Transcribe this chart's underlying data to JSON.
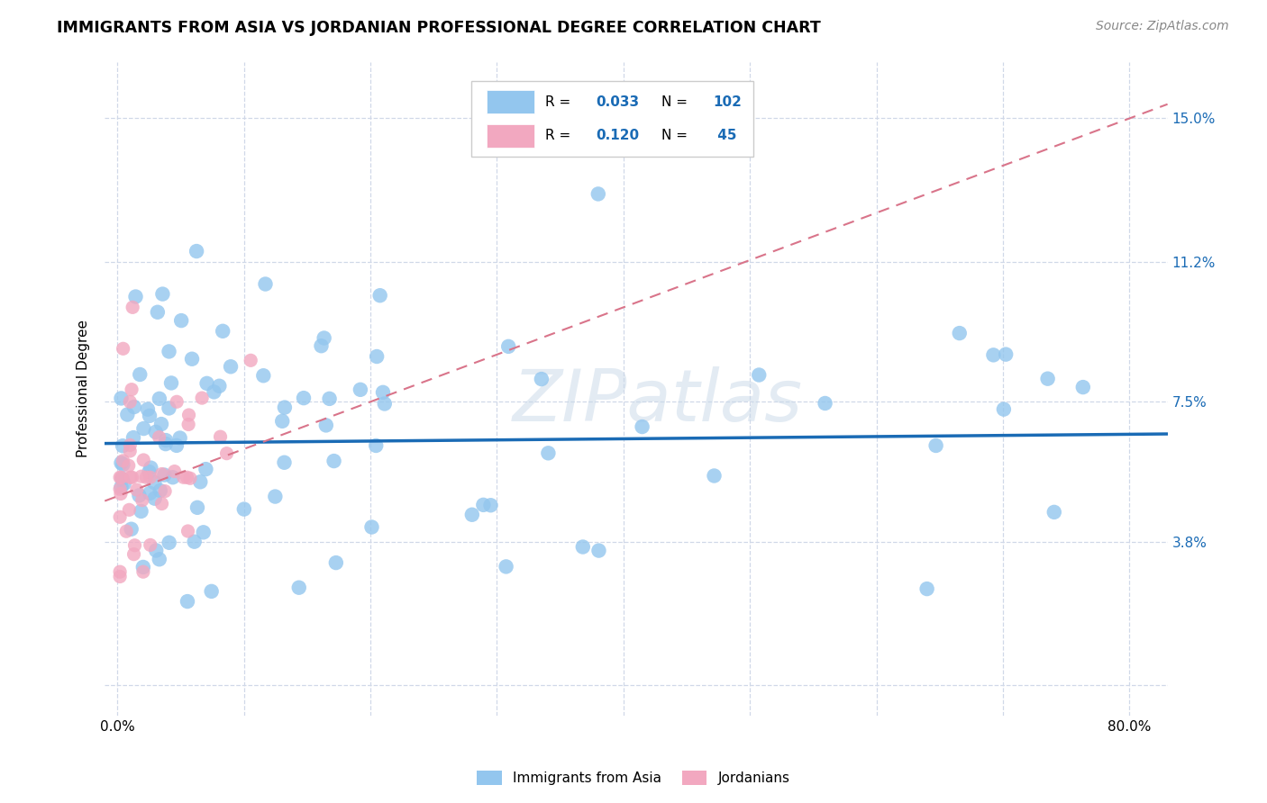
{
  "title": "IMMIGRANTS FROM ASIA VS JORDANIAN PROFESSIONAL DEGREE CORRELATION CHART",
  "source": "Source: ZipAtlas.com",
  "ylabel": "Professional Degree",
  "xlim": [
    -0.01,
    0.83
  ],
  "ylim": [
    -0.008,
    0.165
  ],
  "x_tick_positions": [
    0.0,
    0.1,
    0.2,
    0.3,
    0.4,
    0.5,
    0.6,
    0.7,
    0.8
  ],
  "x_tick_labels": [
    "0.0%",
    "",
    "",
    "",
    "",
    "",
    "",
    "",
    "80.0%"
  ],
  "y_tick_positions": [
    0.0,
    0.038,
    0.075,
    0.112,
    0.15
  ],
  "y_tick_labels": [
    "",
    "3.8%",
    "7.5%",
    "11.2%",
    "15.0%"
  ],
  "legend_labels": [
    "Immigrants from Asia",
    "Jordanians"
  ],
  "legend_R_asia": "0.033",
  "legend_N_asia": "102",
  "legend_R_jordan": "0.120",
  "legend_N_jordan": "45",
  "color_asia": "#93C6EE",
  "color_asia_line": "#1A6BB5",
  "color_jordan": "#F2A8C0",
  "color_jordan_line": "#D9748A",
  "background_color": "#ffffff",
  "grid_color": "#d0d8e8",
  "watermark": "ZIPatlas",
  "title_fontsize": 12.5,
  "label_fontsize": 11,
  "tick_fontsize": 11,
  "source_fontsize": 10,
  "legend_color_blue": "#1A6BB5",
  "legend_color_red": "#E53935"
}
